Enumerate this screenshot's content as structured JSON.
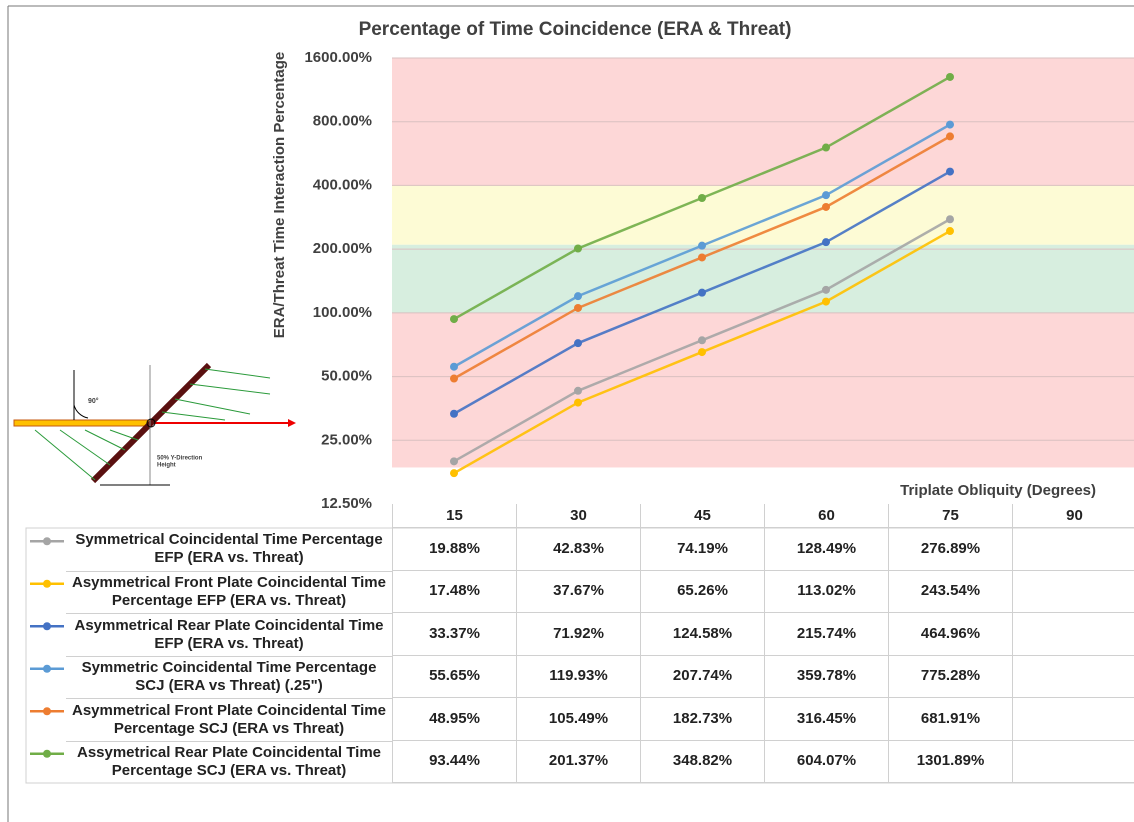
{
  "chart_data": {
    "type": "line",
    "title": "Percentage of Time Coincidence (ERA  & Threat)",
    "y_label": "ERA/Threat Time Interaction Percentage",
    "x_label": "Triplate Obliquity (Degrees)",
    "categories": [
      "15",
      "30",
      "45",
      "60",
      "75",
      "90"
    ],
    "log_scale": true,
    "ylim": [
      12.5,
      1600
    ],
    "yticks": [
      {
        "value": 12.5,
        "label": "12.50%"
      },
      {
        "value": 25,
        "label": "25.00%"
      },
      {
        "value": 50,
        "label": "50.00%"
      },
      {
        "value": 100,
        "label": "100.00%"
      },
      {
        "value": 200,
        "label": "200.00%"
      },
      {
        "value": 400,
        "label": "400.00%"
      },
      {
        "value": 800,
        "label": "800.00%"
      },
      {
        "value": 1600,
        "label": "1600.00%"
      }
    ],
    "grid": true,
    "bands": [
      {
        "from": 18.6,
        "to": 100,
        "color": "#fdd7d7"
      },
      {
        "from": 100,
        "to": 210,
        "color": "#d7eedf"
      },
      {
        "from": 210,
        "to": 400,
        "color": "#fdfbd5"
      },
      {
        "from": 400,
        "to": 1600,
        "color": "#fdd7d7"
      }
    ],
    "series": [
      {
        "name": "Symmetrical Coincidental Time Percentage EFP (ERA vs. Threat)",
        "color": "#a5a5a5",
        "values": [
          19.88,
          42.83,
          74.19,
          128.49,
          276.89,
          null
        ],
        "value_labels": [
          "19.88%",
          "42.83%",
          "74.19%",
          "128.49%",
          "276.89%",
          null
        ]
      },
      {
        "name": "Asymmetrical Front Plate Coincidental Time Percentage EFP (ERA vs. Threat)",
        "color": "#ffc000",
        "values": [
          17.48,
          37.67,
          65.26,
          113.02,
          243.54,
          null
        ],
        "value_labels": [
          "17.48%",
          "37.67%",
          "65.26%",
          "113.02%",
          "243.54%",
          null
        ]
      },
      {
        "name": "Asymmetrical Rear Plate Coincidental Time EFP (ERA vs. Threat)",
        "color": "#4472c4",
        "values": [
          33.37,
          71.92,
          124.58,
          215.74,
          464.96,
          null
        ],
        "value_labels": [
          "33.37%",
          "71.92%",
          "124.58%",
          "215.74%",
          "464.96%",
          null
        ]
      },
      {
        "name": "Symmetric Coincidental Time Percentage SCJ (ERA vs Threat) (.25\")",
        "color": "#5b9bd5",
        "values": [
          55.65,
          119.93,
          207.74,
          359.78,
          775.28,
          null
        ],
        "value_labels": [
          "55.65%",
          "119.93%",
          "207.74%",
          "359.78%",
          "775.28%",
          null
        ]
      },
      {
        "name": "Asymmetrical Front Plate Coincidental Time Percentage SCJ (ERA vs Threat)",
        "color": "#ed7d31",
        "values": [
          48.95,
          105.49,
          182.73,
          316.45,
          681.91,
          null
        ],
        "value_labels": [
          "48.95%",
          "105.49%",
          "182.73%",
          "316.45%",
          "681.91%",
          null
        ]
      },
      {
        "name": "Assymetrical Rear Plate Coincidental Time Percentage SCJ (ERA vs. Threat)",
        "color": "#70ad47",
        "values": [
          93.44,
          201.37,
          348.82,
          604.07,
          1301.89,
          null
        ],
        "value_labels": [
          "93.44%",
          "201.37%",
          "348.82%",
          "604.07%",
          "1301.89%",
          null
        ]
      }
    ]
  },
  "diagram": {
    "angle_label": "90°",
    "height_label": [
      "50% Y-Direction",
      "Height"
    ]
  }
}
